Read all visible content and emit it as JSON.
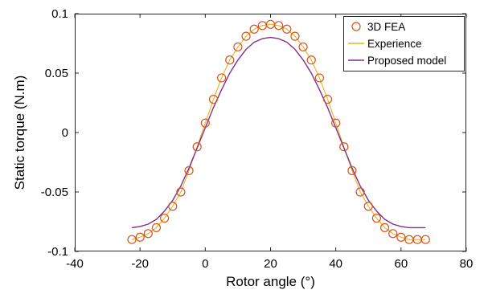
{
  "chart_data": {
    "type": "line",
    "title": "",
    "xlabel": "Rotor angle (°)",
    "ylabel": "Static torque (N.m)",
    "xlim": [
      -40,
      80
    ],
    "ylim": [
      -0.1,
      0.1
    ],
    "xticks": [
      -40,
      -20,
      0,
      20,
      40,
      60,
      80
    ],
    "yticks": [
      -0.1,
      -0.05,
      0,
      0.05,
      0.1
    ],
    "xtick_labels": [
      "-40",
      "-20",
      "0",
      "20",
      "40",
      "60",
      "80"
    ],
    "ytick_labels": [
      "-0.1",
      "-0.05",
      "0",
      "0.05",
      "0.1"
    ],
    "grid": false,
    "legend_position": "top-right",
    "series": [
      {
        "name": "3D FEA",
        "style": "markers",
        "marker": "circle",
        "color": "#D95319",
        "x": [
          -22.5,
          -20,
          -17.5,
          -15,
          -12.5,
          -10,
          -7.5,
          -5,
          -2.5,
          0,
          2.5,
          5,
          7.5,
          10,
          12.5,
          15,
          17.5,
          20,
          22.5,
          25,
          27.5,
          30,
          32.5,
          35,
          37.5,
          40,
          42.5,
          45,
          47.5,
          50,
          52.5,
          55,
          57.5,
          60,
          62.5,
          65,
          67.5
        ],
        "y": [
          -0.09,
          -0.088,
          -0.085,
          -0.08,
          -0.072,
          -0.062,
          -0.05,
          -0.032,
          -0.012,
          0.008,
          0.028,
          0.046,
          0.061,
          0.072,
          0.081,
          0.087,
          0.09,
          0.091,
          0.09,
          0.087,
          0.081,
          0.072,
          0.061,
          0.046,
          0.028,
          0.008,
          -0.012,
          -0.032,
          -0.05,
          -0.062,
          -0.072,
          -0.08,
          -0.085,
          -0.088,
          -0.09,
          -0.09,
          -0.09
        ]
      },
      {
        "name": "Experience",
        "style": "line",
        "color": "#EDB120",
        "x": [
          -22.5,
          -20,
          -17.5,
          -15,
          -12.5,
          -10,
          -7.5,
          -5,
          -2.5,
          0,
          2.5,
          5,
          7.5,
          10,
          12.5,
          15,
          17.5,
          20,
          22.5,
          25,
          27.5,
          30,
          32.5,
          35,
          37.5,
          40,
          42.5,
          45,
          47.5,
          50,
          52.5,
          55,
          57.5,
          60,
          62.5,
          65,
          67.5
        ],
        "y": [
          -0.09,
          -0.088,
          -0.085,
          -0.08,
          -0.072,
          -0.062,
          -0.05,
          -0.032,
          -0.012,
          0.008,
          0.028,
          0.046,
          0.061,
          0.072,
          0.081,
          0.087,
          0.09,
          0.091,
          0.09,
          0.087,
          0.081,
          0.072,
          0.061,
          0.046,
          0.028,
          0.008,
          -0.012,
          -0.032,
          -0.05,
          -0.062,
          -0.072,
          -0.08,
          -0.085,
          -0.088,
          -0.09,
          -0.09,
          -0.09
        ]
      },
      {
        "name": "Proposed model",
        "style": "line",
        "color": "#7E2F8E",
        "x": [
          -22.5,
          -20,
          -17.5,
          -15,
          -12.5,
          -10,
          -7.5,
          -5,
          -2.5,
          0,
          2.5,
          5,
          7.5,
          10,
          12.5,
          15,
          17.5,
          20,
          22.5,
          25,
          27.5,
          30,
          32.5,
          35,
          37.5,
          40,
          42.5,
          45,
          47.5,
          50,
          52.5,
          55,
          57.5,
          60,
          62.5,
          65,
          67.5
        ],
        "y": [
          -0.08,
          -0.079,
          -0.077,
          -0.073,
          -0.066,
          -0.057,
          -0.045,
          -0.03,
          -0.013,
          0.004,
          0.021,
          0.036,
          0.05,
          0.061,
          0.07,
          0.076,
          0.079,
          0.08,
          0.079,
          0.076,
          0.07,
          0.061,
          0.05,
          0.036,
          0.021,
          0.004,
          -0.013,
          -0.03,
          -0.045,
          -0.057,
          -0.066,
          -0.073,
          -0.077,
          -0.079,
          -0.08,
          -0.08,
          -0.08
        ]
      }
    ]
  }
}
